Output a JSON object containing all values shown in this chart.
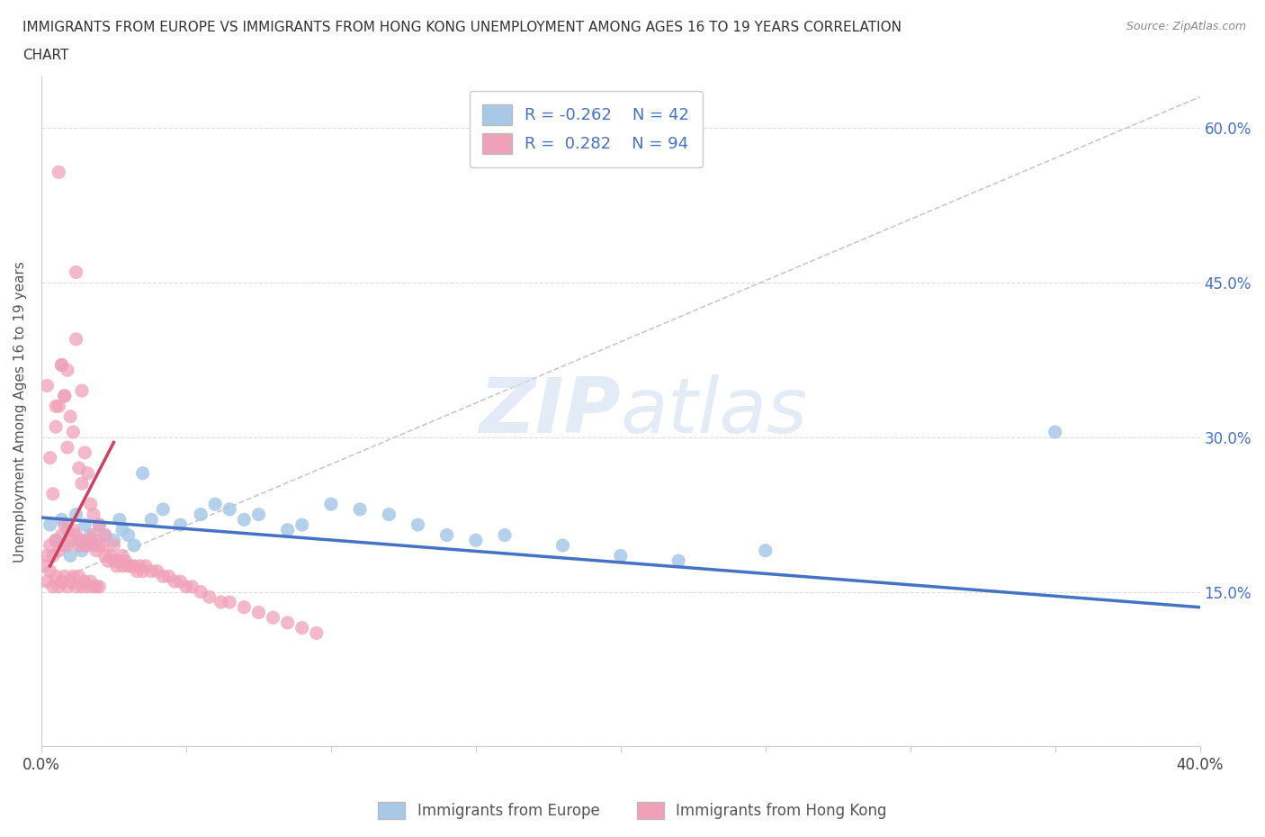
{
  "title_line1": "IMMIGRANTS FROM EUROPE VS IMMIGRANTS FROM HONG KONG UNEMPLOYMENT AMONG AGES 16 TO 19 YEARS CORRELATION",
  "title_line2": "CHART",
  "source_text": "Source: ZipAtlas.com",
  "ylabel": "Unemployment Among Ages 16 to 19 years",
  "xmin": 0.0,
  "xmax": 0.4,
  "ymin": 0.0,
  "ymax": 0.65,
  "europe_R": -0.262,
  "europe_N": 42,
  "hk_R": 0.282,
  "hk_N": 94,
  "europe_color": "#a8c8e8",
  "hk_color": "#f0a0b8",
  "europe_line_color": "#4472c4",
  "hk_line_color": "#d04060",
  "watermark_color": "#d0dff0",
  "europe_x": [
    0.003,
    0.005,
    0.007,
    0.008,
    0.009,
    0.01,
    0.012,
    0.013,
    0.014,
    0.015,
    0.017,
    0.018,
    0.02,
    0.022,
    0.025,
    0.027,
    0.028,
    0.03,
    0.032,
    0.035,
    0.038,
    0.042,
    0.048,
    0.055,
    0.06,
    0.065,
    0.07,
    0.075,
    0.085,
    0.09,
    0.1,
    0.11,
    0.12,
    0.13,
    0.14,
    0.15,
    0.16,
    0.18,
    0.2,
    0.22,
    0.25,
    0.35
  ],
  "europe_y": [
    0.215,
    0.2,
    0.22,
    0.195,
    0.21,
    0.185,
    0.225,
    0.2,
    0.19,
    0.215,
    0.205,
    0.195,
    0.215,
    0.205,
    0.2,
    0.22,
    0.21,
    0.205,
    0.195,
    0.265,
    0.22,
    0.23,
    0.215,
    0.225,
    0.235,
    0.23,
    0.22,
    0.225,
    0.21,
    0.215,
    0.235,
    0.23,
    0.225,
    0.215,
    0.205,
    0.2,
    0.205,
    0.195,
    0.185,
    0.18,
    0.19,
    0.305
  ],
  "hk_x": [
    0.001,
    0.002,
    0.002,
    0.003,
    0.003,
    0.004,
    0.004,
    0.005,
    0.005,
    0.006,
    0.006,
    0.007,
    0.007,
    0.008,
    0.008,
    0.009,
    0.009,
    0.01,
    0.01,
    0.011,
    0.011,
    0.012,
    0.012,
    0.013,
    0.013,
    0.014,
    0.014,
    0.015,
    0.015,
    0.016,
    0.016,
    0.017,
    0.017,
    0.018,
    0.018,
    0.019,
    0.019,
    0.02,
    0.02,
    0.021,
    0.022,
    0.023,
    0.024,
    0.025,
    0.026,
    0.027,
    0.028,
    0.029,
    0.03,
    0.031,
    0.032,
    0.033,
    0.034,
    0.035,
    0.036,
    0.038,
    0.04,
    0.042,
    0.044,
    0.046,
    0.048,
    0.05,
    0.052,
    0.055,
    0.058,
    0.062,
    0.065,
    0.07,
    0.075,
    0.08,
    0.085,
    0.09,
    0.095,
    0.002,
    0.003,
    0.004,
    0.005,
    0.006,
    0.007,
    0.008,
    0.009,
    0.01,
    0.011,
    0.012,
    0.013,
    0.014,
    0.015,
    0.016,
    0.017,
    0.018,
    0.02,
    0.022,
    0.025,
    0.028
  ],
  "hk_y": [
    0.175,
    0.185,
    0.16,
    0.195,
    0.17,
    0.185,
    0.155,
    0.2,
    0.165,
    0.19,
    0.155,
    0.205,
    0.16,
    0.215,
    0.165,
    0.195,
    0.155,
    0.2,
    0.16,
    0.21,
    0.165,
    0.205,
    0.155,
    0.195,
    0.165,
    0.2,
    0.155,
    0.195,
    0.16,
    0.195,
    0.155,
    0.2,
    0.16,
    0.205,
    0.155,
    0.19,
    0.155,
    0.195,
    0.155,
    0.195,
    0.185,
    0.18,
    0.185,
    0.18,
    0.175,
    0.18,
    0.175,
    0.18,
    0.175,
    0.175,
    0.175,
    0.17,
    0.175,
    0.17,
    0.175,
    0.17,
    0.17,
    0.165,
    0.165,
    0.16,
    0.16,
    0.155,
    0.155,
    0.15,
    0.145,
    0.14,
    0.14,
    0.135,
    0.13,
    0.125,
    0.12,
    0.115,
    0.11,
    0.35,
    0.28,
    0.245,
    0.31,
    0.33,
    0.37,
    0.34,
    0.29,
    0.32,
    0.305,
    0.395,
    0.27,
    0.255,
    0.285,
    0.265,
    0.235,
    0.225,
    0.215,
    0.205,
    0.195,
    0.185
  ],
  "hk_outliers_x": [
    0.006,
    0.012,
    0.007,
    0.009,
    0.014,
    0.005,
    0.008
  ],
  "hk_outliers_y": [
    0.557,
    0.46,
    0.37,
    0.365,
    0.345,
    0.33,
    0.34
  ]
}
